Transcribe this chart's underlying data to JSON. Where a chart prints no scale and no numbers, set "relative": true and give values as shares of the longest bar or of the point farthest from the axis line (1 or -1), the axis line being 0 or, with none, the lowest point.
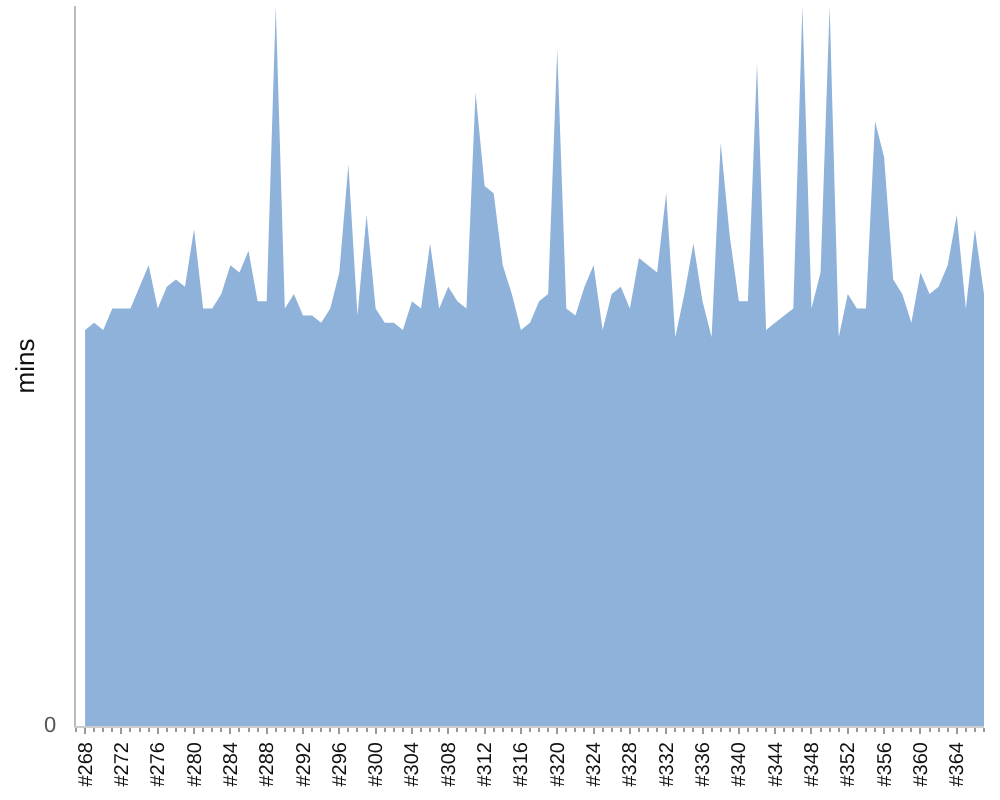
{
  "chart_data": {
    "type": "area",
    "relative": true,
    "ylabel": "mins",
    "annotations": [
      "0"
    ],
    "color": "#8fb2da",
    "categories": [
      "#268",
      null,
      null,
      null,
      "#272",
      null,
      null,
      null,
      "#276",
      null,
      null,
      null,
      "#280",
      null,
      null,
      null,
      "#284",
      null,
      null,
      null,
      "#288",
      null,
      null,
      null,
      "#292",
      null,
      null,
      null,
      "#296",
      null,
      null,
      null,
      "#300",
      null,
      null,
      null,
      "#304",
      null,
      null,
      null,
      "#308",
      null,
      null,
      null,
      "#312",
      null,
      null,
      null,
      "#316",
      null,
      null,
      null,
      "#320",
      null,
      null,
      null,
      "#324",
      null,
      null,
      null,
      "#328",
      null,
      null,
      null,
      "#332",
      null,
      null,
      null,
      "#336",
      null,
      null,
      null,
      "#340",
      null,
      null,
      null,
      "#344",
      null,
      null,
      null,
      "#348",
      null,
      null,
      null,
      "#352",
      null,
      null,
      null,
      "#356",
      null,
      null,
      null,
      "#360",
      null,
      null,
      null,
      "#364",
      null,
      null,
      null
    ],
    "values": [
      0.55,
      0.56,
      0.55,
      0.58,
      0.58,
      0.58,
      0.61,
      0.64,
      0.58,
      0.61,
      0.62,
      0.61,
      0.69,
      0.58,
      0.58,
      0.6,
      0.64,
      0.63,
      0.66,
      0.59,
      0.59,
      1,
      0.58,
      0.6,
      0.57,
      0.57,
      0.56,
      0.58,
      0.63,
      0.78,
      0.57,
      0.71,
      0.58,
      0.56,
      0.56,
      0.55,
      0.59,
      0.58,
      0.67,
      0.58,
      0.61,
      0.59,
      0.58,
      0.88,
      0.75,
      0.74,
      0.64,
      0.6,
      0.55,
      0.56,
      0.59,
      0.6,
      0.94,
      0.58,
      0.57,
      0.61,
      0.64,
      0.55,
      0.6,
      0.61,
      0.58,
      0.65,
      0.64,
      0.63,
      0.74,
      0.54,
      0.6,
      0.67,
      0.59,
      0.54,
      0.81,
      0.68,
      0.59,
      0.59,
      0.92,
      0.55,
      0.56,
      0.57,
      0.58,
      1,
      0.58,
      0.63,
      1,
      0.54,
      0.6,
      0.58,
      0.58,
      0.84,
      0.79,
      0.62,
      0.6,
      0.56,
      0.63,
      0.6,
      0.61,
      0.64,
      0.71,
      0.58,
      0.69,
      0.6
    ]
  }
}
